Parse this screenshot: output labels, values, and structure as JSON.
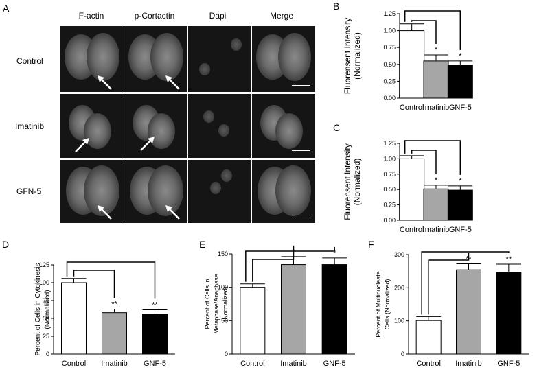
{
  "panel_labels": {
    "A": "A",
    "B": "B",
    "C": "C",
    "D": "D",
    "E": "E",
    "F": "F"
  },
  "micrograph": {
    "columns": [
      "F-actin",
      "p-Cortactin",
      "Dapi",
      "Merge"
    ],
    "rows": [
      "Control",
      "Imatinib",
      "GFN-5"
    ]
  },
  "colors": {
    "control": "#ffffff",
    "imatinib": "#a6a6a6",
    "gnf5": "#000000",
    "micro_bg": "#151515"
  },
  "chart_data": [
    {
      "id": "B",
      "type": "bar",
      "categories": [
        "Control",
        "Imatinib",
        "GNF-5"
      ],
      "values": [
        1.0,
        0.55,
        0.49
      ],
      "errors": [
        0.1,
        0.09,
        0.06
      ],
      "ylabel_lines": [
        "Fluorensent Intensity",
        "(Normalized)"
      ],
      "ylim": [
        0,
        1.25
      ],
      "yticks": [
        "0.00",
        "0.25",
        "0.50",
        "0.75",
        "1.00",
        "1.25"
      ],
      "sig": [
        "",
        "*",
        "*"
      ]
    },
    {
      "id": "C",
      "type": "bar",
      "categories": [
        "Control",
        "Imatinib",
        "GNF-5"
      ],
      "values": [
        1.0,
        0.51,
        0.49
      ],
      "errors": [
        0.05,
        0.06,
        0.07
      ],
      "ylabel_lines": [
        "Fluorensent Intensity",
        "(Normalized)"
      ],
      "ylim": [
        0,
        1.25
      ],
      "yticks": [
        "0.00",
        "0.25",
        "0.50",
        "0.75",
        "1.00",
        "1.25"
      ],
      "sig": [
        "",
        "*",
        "*"
      ]
    },
    {
      "id": "D",
      "type": "bar",
      "categories": [
        "Control",
        "Imatinib",
        "GNF-5"
      ],
      "values": [
        100,
        58,
        56
      ],
      "errors": [
        6,
        5,
        6
      ],
      "ylabel_lines": [
        "Percent of Cells in Cytokinesis",
        "(Normalized)"
      ],
      "ylim": [
        0,
        125
      ],
      "yticks": [
        "0",
        "25",
        "50",
        "75",
        "100",
        "125"
      ],
      "sig": [
        "",
        "**",
        "**"
      ]
    },
    {
      "id": "E",
      "type": "bar",
      "categories": [
        "Control",
        "Imatinib",
        "GNF-5"
      ],
      "values": [
        100,
        134,
        134
      ],
      "errors": [
        5,
        12,
        10
      ],
      "ylabel_lines": [
        "Percent of Cells in",
        "Metaphase/Anaphase",
        "(Normalized)"
      ],
      "ylim": [
        0,
        150
      ],
      "yticks": [
        "0",
        "50",
        "100",
        "150"
      ],
      "sig": [
        "",
        "*",
        "*"
      ]
    },
    {
      "id": "F",
      "type": "bar",
      "categories": [
        "Control",
        "Imatinib",
        "GNF-5"
      ],
      "values": [
        101,
        254,
        247
      ],
      "errors": [
        12,
        18,
        24
      ],
      "ylabel_lines": [
        "Percent of Multinucleate",
        "Cells (Normalized)"
      ],
      "ylim": [
        0,
        300
      ],
      "yticks": [
        "0",
        "100",
        "200",
        "300"
      ],
      "sig": [
        "",
        "**",
        "**"
      ]
    }
  ]
}
